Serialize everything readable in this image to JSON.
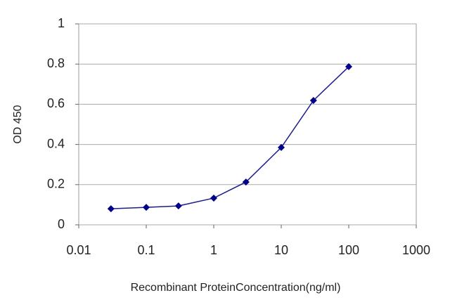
{
  "chart_data": {
    "type": "line",
    "xscale": "log",
    "x": [
      0.03,
      0.1,
      0.3,
      1,
      3,
      10,
      30,
      100
    ],
    "values": [
      0.08,
      0.087,
      0.094,
      0.133,
      0.213,
      0.385,
      0.619,
      0.787
    ],
    "color": "#1c1c8c",
    "marker_color": "#00008b",
    "xlim": [
      0.01,
      1000
    ],
    "xticks": [
      0.01,
      0.1,
      1,
      10,
      100,
      1000
    ],
    "ylim": [
      0,
      1
    ],
    "yticks": [
      0,
      0.2,
      0.4,
      0.6,
      0.8,
      1
    ],
    "grid": true,
    "xlabel": "Recombinant ProteinConcentration(ng/ml)",
    "ylabel": "OD 450"
  }
}
